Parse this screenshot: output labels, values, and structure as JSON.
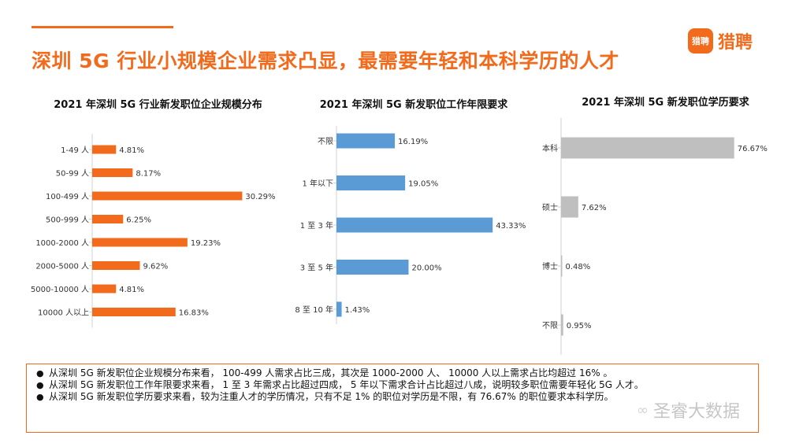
{
  "title": "深圳 5G 行业小规模企业需求凸显，最需要年轻和本科学历的人才",
  "logo": {
    "badge": "猎聘",
    "text": "猎聘"
  },
  "colors": {
    "accent": "#f26b1d",
    "orange": "#f26b1d",
    "blue": "#5b9bd5",
    "gray": "#bfbfbf"
  },
  "chart_data": [
    {
      "type": "bar",
      "orientation": "horizontal",
      "title": "2021 年深圳 5G 行业新发职位企业规模分布",
      "categories": [
        "1-49 人",
        "50-99 人",
        "100-499 人",
        "500-999 人",
        "1000-2000 人",
        "2000-5000 人",
        "5000-10000 人",
        "10000 人以上"
      ],
      "values": [
        4.81,
        8.17,
        30.29,
        6.25,
        19.23,
        9.62,
        4.81,
        16.83
      ],
      "labels": [
        "4.81%",
        "8.17%",
        "30.29%",
        "6.25%",
        "19.23%",
        "9.62%",
        "4.81%",
        "16.83%"
      ],
      "unit": "%",
      "color": "#f26b1d",
      "xlim": [
        0,
        35
      ]
    },
    {
      "type": "bar",
      "orientation": "horizontal",
      "title": "2021 年深圳 5G 新发职位工作年限要求",
      "categories": [
        "不限",
        "1 年以下",
        "1 至 3 年",
        "3 至 5 年",
        "8 至 10 年"
      ],
      "values": [
        16.19,
        19.05,
        43.33,
        20.0,
        1.43
      ],
      "labels": [
        "16.19%",
        "19.05%",
        "43.33%",
        "20.00%",
        "1.43%"
      ],
      "unit": "%",
      "color": "#5b9bd5",
      "xlim": [
        0,
        47
      ]
    },
    {
      "type": "bar",
      "orientation": "horizontal",
      "title": "2021 年深圳 5G 新发职位学历要求",
      "categories": [
        "本科",
        "硕士",
        "博士",
        "不限"
      ],
      "values": [
        76.67,
        7.62,
        0.48,
        0.95
      ],
      "labels": [
        "76.67%",
        "7.62%",
        "0.48%",
        "0.95%"
      ],
      "unit": "%",
      "color": "#bfbfbf",
      "xlim": [
        0,
        82
      ]
    }
  ],
  "notes": [
    "从深圳 5G 新发职位企业规模分布来看， 100-499 人需求占比三成，其次是 1000-2000 人、 10000 人以上需求占比均超过 16% 。",
    "从深圳 5G 新发职位工作年限要求来看， 1 至 3 年需求占比超过四成， 5 年以下需求合计占比超过八成，说明较多职位需要年轻化 5G 人才。",
    "从深圳 5G 新发职位学历要求来看，较为注重人才的学历情况，只有不足 1% 的职位对学历是不限，有 76.67% 的职位要求本科学历。"
  ],
  "bullet": "●",
  "watermark": {
    "icon": "wechat-icon",
    "glyph": "∞",
    "text": "圣睿大数据"
  }
}
